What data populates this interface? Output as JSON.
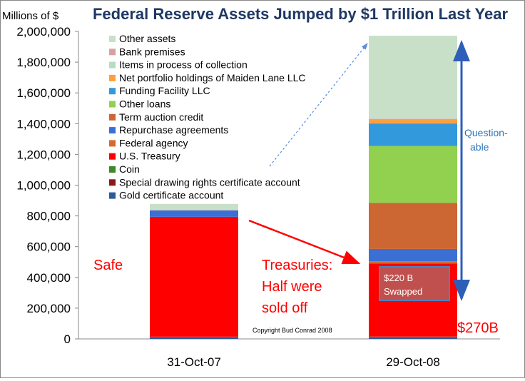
{
  "chart_data": {
    "type": "bar",
    "stacked": true,
    "title": "Federal Reserve Assets Jumped by $1 Trillion Last Year",
    "ylabel": "Millions of $",
    "xlabel": "",
    "ylim": [
      0,
      2000000
    ],
    "yticks": [
      0,
      200000,
      400000,
      600000,
      800000,
      1000000,
      1200000,
      1400000,
      1600000,
      1800000,
      2000000
    ],
    "ytick_labels": [
      "0",
      "200,000",
      "400,000",
      "600,000",
      "800,000",
      "1,000,000",
      "1,200,000",
      "1,400,000",
      "1,600,000",
      "1,800,000",
      "2,000,000"
    ],
    "categories": [
      "31-Oct-07",
      "29-Oct-08"
    ],
    "grid": false,
    "legend_position": "top-left-inside",
    "series": [
      {
        "name": "Gold certificate account",
        "color": "#2a5b9a",
        "values": [
          11000,
          11000
        ]
      },
      {
        "name": "Special drawing rights certificate account",
        "color": "#8b1a1a",
        "values": [
          2200,
          2200
        ]
      },
      {
        "name": "Coin",
        "color": "#3a8a2a",
        "values": [
          1200,
          1700
        ]
      },
      {
        "name": "U.S. Treasury",
        "color": "#ff0000",
        "values": [
          779700,
          476100
        ]
      },
      {
        "name": "Federal agency",
        "color": "#d86830",
        "values": [
          0,
          14000
        ]
      },
      {
        "name": "Repurchase agreements",
        "color": "#3b6fd4",
        "values": [
          42000,
          80000
        ]
      },
      {
        "name": "Term auction credit",
        "color": "#cc6633",
        "values": [
          0,
          300000
        ]
      },
      {
        "name": "Other loans",
        "color": "#92d050",
        "values": [
          0,
          370000
        ]
      },
      {
        "name": "Funding Facility LLC",
        "color": "#3399dd",
        "values": [
          0,
          146000
        ]
      },
      {
        "name": "Net portfolio holdings of Maiden Lane LLC",
        "color": "#ffa040",
        "values": [
          0,
          29000
        ]
      },
      {
        "name": "Items in process of collection",
        "color": "#b8dcc0",
        "values": [
          0,
          0
        ]
      },
      {
        "name": "Bank premises",
        "color": "#d9a0a0",
        "values": [
          2000,
          2000
        ]
      },
      {
        "name": "Other assets",
        "color": "#c8e0c8",
        "values": [
          39900,
          540000
        ]
      }
    ],
    "annotations": {
      "safe": "Safe",
      "treasuries": [
        "Treasuries:",
        "Half were",
        "sold off"
      ],
      "swapped": [
        "$220 B",
        "Swapped"
      ],
      "questionable": [
        "Question-",
        "able"
      ],
      "amount_270": "$270B",
      "copyright": "Copyright Bud Conrad 2008"
    },
    "colors": {
      "title": "#1f3864",
      "annotation_red": "#ff0000",
      "questionable_blue": "#2e75b6",
      "swapped_fill": "#c0504d",
      "swapped_border": "#4f81bd"
    }
  }
}
